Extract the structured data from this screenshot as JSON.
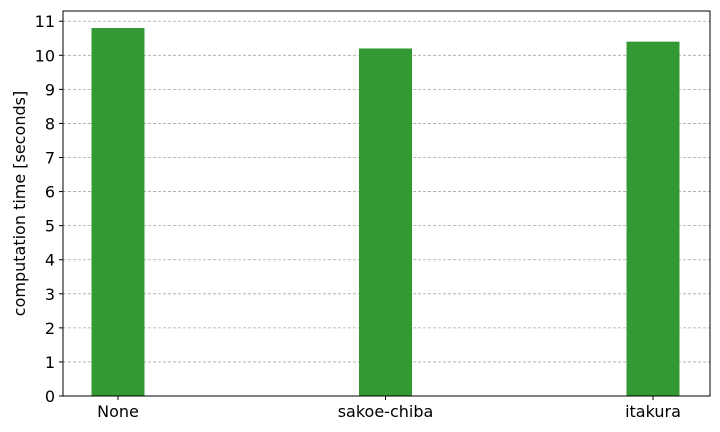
{
  "chart_data": {
    "type": "bar",
    "title": "",
    "xlabel": "",
    "ylabel": "computation time [seconds]",
    "categories": [
      "None",
      "sakoe-chiba",
      "itakura"
    ],
    "values": [
      10.8,
      10.2,
      10.4
    ],
    "ylim": [
      0,
      11.3
    ],
    "yticks": [
      0,
      1,
      2,
      3,
      4,
      5,
      6,
      7,
      8,
      9,
      10,
      11
    ],
    "grid": true,
    "bar_color": "#339933",
    "legend": "none"
  }
}
